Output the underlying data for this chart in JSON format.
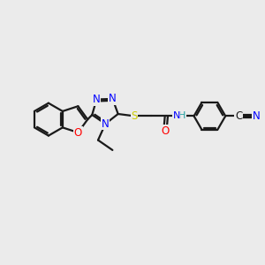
{
  "bg_color": "#ebebeb",
  "bond_color": "#1a1a1a",
  "bond_width": 1.6,
  "atom_colors": {
    "N": "#0000ff",
    "O": "#ff0000",
    "S": "#cccc00",
    "C": "#1a1a1a",
    "H": "#20a0a0"
  },
  "font_size": 8.5,
  "fig_size": [
    3.0,
    3.0
  ],
  "dpi": 100
}
